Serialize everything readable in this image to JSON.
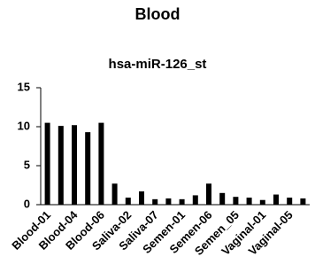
{
  "chart_data": {
    "type": "bar",
    "title": "Blood",
    "subtitle": "hsa-miR-126_st",
    "categories": [
      "Blood-01",
      null,
      "Blood-04",
      null,
      "Blood-06",
      null,
      "Saliva-02",
      null,
      "Saliva-07",
      null,
      "Semen-01",
      null,
      "Semen-06",
      null,
      "Semen_05",
      null,
      "Vaginal-01",
      null,
      "Vaginal-05",
      null
    ],
    "values": [
      10.5,
      10.1,
      10.2,
      9.3,
      10.5,
      2.7,
      0.9,
      1.7,
      0.7,
      0.8,
      0.7,
      1.2,
      2.7,
      1.5,
      1.0,
      0.9,
      0.6,
      1.3,
      0.9,
      0.8
    ],
    "color": "#000000",
    "ylim": [
      0,
      15
    ],
    "yticks": [
      0,
      5,
      10,
      15
    ],
    "grid": false
  }
}
